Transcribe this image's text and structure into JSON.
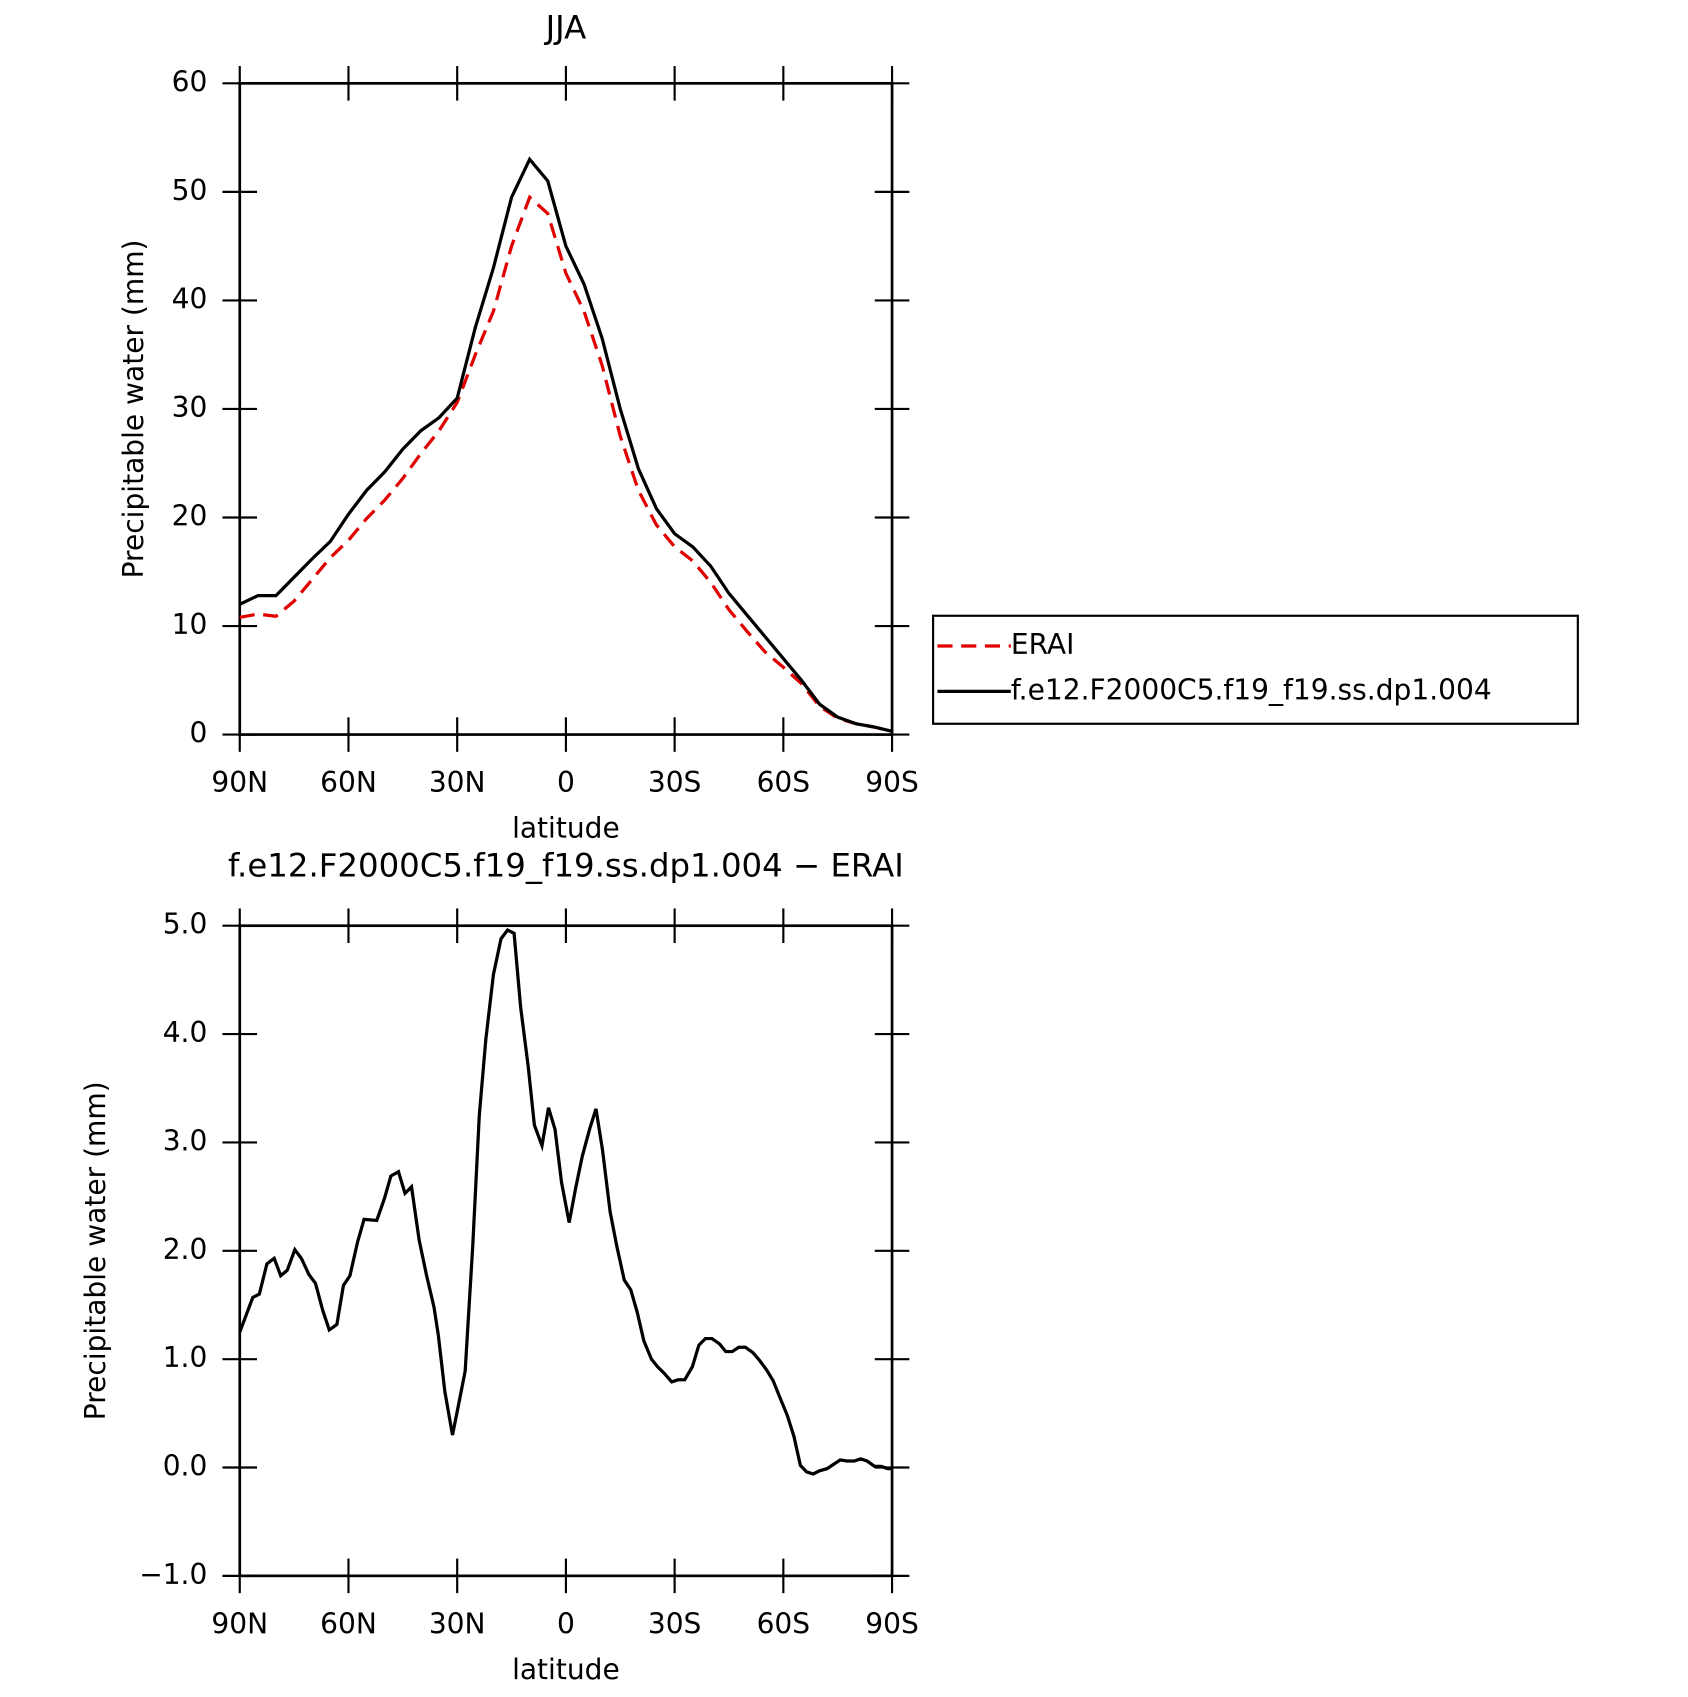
{
  "chart_data": [
    {
      "type": "line",
      "title": "JJA",
      "xlabel": "latitude",
      "ylabel": "Precipitable water (mm)",
      "x": [
        90,
        85,
        80,
        75,
        70,
        65,
        60,
        55,
        50,
        45,
        40,
        35,
        30,
        25,
        20,
        15,
        10,
        5,
        0,
        -5,
        -10,
        -15,
        -20,
        -25,
        -30,
        -35,
        -40,
        -45,
        -50,
        -55,
        -60,
        -65,
        -70,
        -75,
        -80,
        -85,
        -90
      ],
      "series": [
        {
          "name": "ERAI",
          "color": "#e00000",
          "style": "dashed",
          "values": [
            10.8,
            11.1,
            10.9,
            12.3,
            14.3,
            16.3,
            17.9,
            19.9,
            21.6,
            23.6,
            25.9,
            28.0,
            30.6,
            35.0,
            39.0,
            45.0,
            49.5,
            48.0,
            42.5,
            39.0,
            34.0,
            27.5,
            22.5,
            19.3,
            17.3,
            16.0,
            14.0,
            11.5,
            9.5,
            7.6,
            6.2,
            4.7,
            2.6,
            1.5,
            1.0,
            0.7,
            0.3
          ]
        },
        {
          "name": "f.e12.F2000C5.f19_f19.ss.dp1.004",
          "color": "#000000",
          "style": "solid",
          "values": [
            12.0,
            12.8,
            12.8,
            14.5,
            16.2,
            17.8,
            20.3,
            22.5,
            24.2,
            26.3,
            28.0,
            29.2,
            31.0,
            37.5,
            43.0,
            49.5,
            53.0,
            51.0,
            45.0,
            41.5,
            36.5,
            30.0,
            24.5,
            20.8,
            18.5,
            17.3,
            15.5,
            13.0,
            11.0,
            9.0,
            7.0,
            5.0,
            2.8,
            1.6,
            1.0,
            0.7,
            0.3
          ]
        }
      ],
      "xlim": [
        90,
        -90
      ],
      "xticks": [
        {
          "value": 90,
          "label": "90N"
        },
        {
          "value": 60,
          "label": "60N"
        },
        {
          "value": 30,
          "label": "30N"
        },
        0,
        {
          "value": -30,
          "label": "30S"
        },
        {
          "value": -60,
          "label": "60S"
        },
        {
          "value": -90,
          "label": "90S"
        }
      ],
      "ylim": [
        0,
        60
      ],
      "yticks": [
        0,
        10,
        20,
        30,
        40,
        50,
        60
      ],
      "legend": "right",
      "grid": false
    },
    {
      "type": "line",
      "title": "f.e12.F2000C5.f19_f19.ss.dp1.004 − ERAI",
      "xlabel": "latitude",
      "ylabel": "Precipitable water (mm)",
      "x": [
        90.0,
        86.4,
        84.6,
        82.5,
        80.5,
        78.7,
        76.9,
        74.8,
        73.0,
        70.9,
        69.1,
        67.1,
        65.3,
        63.2,
        61.4,
        59.6,
        57.5,
        55.7,
        52.2,
        50.1,
        48.3,
        46.2,
        44.4,
        42.6,
        40.5,
        38.5,
        36.4,
        35.2,
        33.4,
        31.3,
        29.5,
        27.8,
        25.7,
        23.9,
        22.1,
        20.0,
        17.9,
        16.1,
        14.3,
        12.5,
        10.4,
        8.7,
        6.6,
        4.8,
        3.0,
        1.2,
        -0.9,
        -2.7,
        -4.5,
        -6.6,
        -8.3,
        -10.1,
        -12.2,
        -14.0,
        -16.1,
        -17.9,
        -19.7,
        -21.5,
        -23.6,
        -25.3,
        -27.1,
        -29.2,
        -31.0,
        -32.8,
        -34.9,
        -36.7,
        -38.5,
        -40.3,
        -42.4,
        -44.1,
        -45.9,
        -47.7,
        -49.5,
        -51.6,
        -53.4,
        -55.4,
        -57.2,
        -59.0,
        -61.1,
        -62.9,
        -64.7,
        -66.4,
        -68.2,
        -70.0,
        -72.1,
        -73.9,
        -75.7,
        -77.5,
        -79.6,
        -81.3,
        -83.1,
        -85.2,
        -87.0,
        -88.8,
        -90.0
      ],
      "series": [
        {
          "name": "f.e12.F2000C5.f19_f19.ss.dp1.004 − ERAI",
          "color": "#000000",
          "style": "solid",
          "values": [
            1.25,
            1.57,
            1.6,
            1.88,
            1.93,
            1.77,
            1.82,
            2.01,
            1.93,
            1.78,
            1.7,
            1.45,
            1.27,
            1.32,
            1.68,
            1.77,
            2.08,
            2.29,
            2.28,
            2.48,
            2.69,
            2.73,
            2.53,
            2.59,
            2.1,
            1.78,
            1.48,
            1.22,
            0.7,
            0.3,
            0.6,
            0.89,
            2.05,
            3.25,
            3.95,
            4.55,
            4.88,
            4.96,
            4.93,
            4.25,
            3.7,
            3.16,
            2.97,
            3.32,
            3.12,
            2.63,
            2.26,
            2.58,
            2.87,
            3.13,
            3.31,
            2.93,
            2.36,
            2.05,
            1.73,
            1.64,
            1.43,
            1.17,
            1.0,
            0.93,
            0.87,
            0.79,
            0.81,
            0.81,
            0.93,
            1.13,
            1.19,
            1.19,
            1.14,
            1.07,
            1.07,
            1.11,
            1.11,
            1.06,
            0.99,
            0.9,
            0.8,
            0.65,
            0.48,
            0.29,
            0.02,
            -0.04,
            -0.06,
            -0.03,
            -0.01,
            0.03,
            0.07,
            0.06,
            0.06,
            0.08,
            0.06,
            0.01,
            0.01,
            -0.01,
            -0.01
          ]
        }
      ],
      "xlim": [
        90,
        -90
      ],
      "xticks": [
        {
          "value": 90,
          "label": "90N"
        },
        {
          "value": 60,
          "label": "60N"
        },
        {
          "value": 30,
          "label": "30N"
        },
        0,
        {
          "value": -30,
          "label": "30S"
        },
        {
          "value": -60,
          "label": "60S"
        },
        {
          "value": -90,
          "label": "90S"
        }
      ],
      "ylim": [
        -1,
        5
      ],
      "yticks": [
        {
          "value": -1,
          "label": "−1.0"
        },
        {
          "value": 0,
          "label": "0.0"
        },
        {
          "value": 1,
          "label": "1.0"
        },
        {
          "value": 2,
          "label": "2.0"
        },
        {
          "value": 3,
          "label": "3.0"
        },
        {
          "value": 4,
          "label": "4.0"
        },
        {
          "value": 5,
          "label": "5.0"
        }
      ],
      "grid": false
    }
  ]
}
